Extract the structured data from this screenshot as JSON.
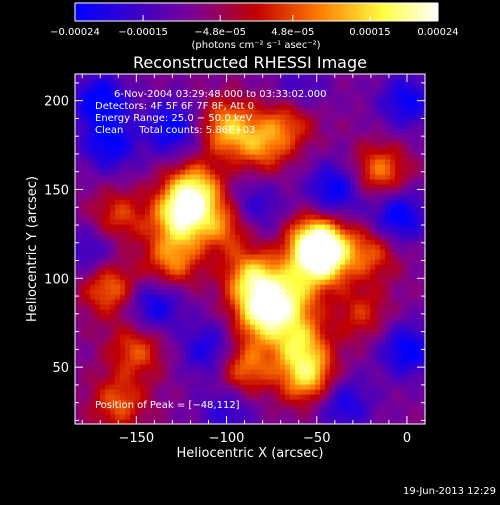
{
  "chart_data": {
    "type": "heatmap",
    "title": "Reconstructed RHESSI Image",
    "xlabel": "Heliocentric X (arcsec)",
    "ylabel": "Heliocentric Y (arcsec)",
    "xlim": [
      -184,
      10
    ],
    "ylim": [
      18,
      215
    ],
    "x_ticks": [
      -150,
      -100,
      -50,
      0
    ],
    "x_tick_labels": [
      "−150",
      "−100",
      "−50",
      "0"
    ],
    "y_ticks": [
      50,
      100,
      150,
      200
    ],
    "y_tick_labels": [
      "50",
      "100",
      "150",
      "200"
    ],
    "colorbar": {
      "range": [
        -0.00024,
        0.00024
      ],
      "tick_labels": [
        "−0.00024",
        "−0.00015",
        "−4.8e−05",
        "4.8e−05",
        "0.00015",
        "0.00024"
      ],
      "ticks": [
        -0.00024,
        -0.00015,
        -4.8e-05,
        4.8e-05,
        0.00015,
        0.00024
      ],
      "unit_label": "(photons cm⁻² s⁻¹ asec⁻²)",
      "colormap": [
        "#0000ff",
        "#3c00c8",
        "#7d0092",
        "#c20000",
        "#ff7a00",
        "#ffff40",
        "#ffffff"
      ]
    },
    "annotations": {
      "time_range": "6‑Nov‑2004 03:29:48.000 to 03:33:02.000",
      "detectors": "Detectors: 4F 5F 6F 7F 8F, Att 0",
      "energy": "Energy Range: 25.0 − 50.0 keV",
      "method": "Clean     Total counts: 5.86E+03",
      "peak": "Position of Peak = [−48,112]"
    },
    "peak_position": [
      -48,
      112
    ],
    "blobs": [
      {
        "x": -48,
        "y": 112,
        "v": 1.0
      },
      {
        "x": -50,
        "y": 122,
        "v": 0.7
      },
      {
        "x": -125,
        "y": 135,
        "v": 0.85
      },
      {
        "x": -118,
        "y": 150,
        "v": 0.75
      },
      {
        "x": -130,
        "y": 110,
        "v": 0.55
      },
      {
        "x": -100,
        "y": 185,
        "v": 0.65
      },
      {
        "x": -80,
        "y": 175,
        "v": 0.5
      },
      {
        "x": -65,
        "y": 190,
        "v": 0.45
      },
      {
        "x": -85,
        "y": 100,
        "v": 0.75
      },
      {
        "x": -80,
        "y": 80,
        "v": 0.8
      },
      {
        "x": -65,
        "y": 90,
        "v": 0.6
      },
      {
        "x": -60,
        "y": 65,
        "v": 0.6
      },
      {
        "x": -55,
        "y": 45,
        "v": 0.75
      },
      {
        "x": -90,
        "y": 50,
        "v": 0.55
      },
      {
        "x": -100,
        "y": 130,
        "v": 0.5
      },
      {
        "x": -150,
        "y": 60,
        "v": 0.45
      },
      {
        "x": -165,
        "y": 95,
        "v": 0.55
      },
      {
        "x": -160,
        "y": 135,
        "v": 0.4
      },
      {
        "x": -20,
        "y": 115,
        "v": 0.45
      },
      {
        "x": -15,
        "y": 160,
        "v": 0.55
      },
      {
        "x": -25,
        "y": 80,
        "v": 0.35
      },
      {
        "x": -160,
        "y": 30,
        "v": 0.45
      },
      {
        "x": -130,
        "y": 185,
        "v": -0.55
      },
      {
        "x": -170,
        "y": 200,
        "v": -0.6
      },
      {
        "x": -165,
        "y": 175,
        "v": -0.5
      },
      {
        "x": -40,
        "y": 150,
        "v": -0.55
      },
      {
        "x": -5,
        "y": 135,
        "v": -0.6
      },
      {
        "x": 0,
        "y": 200,
        "v": -0.5
      },
      {
        "x": 0,
        "y": 60,
        "v": -0.55
      },
      {
        "x": -110,
        "y": 60,
        "v": -0.45
      },
      {
        "x": -140,
        "y": 85,
        "v": -0.5
      },
      {
        "x": -85,
        "y": 140,
        "v": -0.4
      },
      {
        "x": -35,
        "y": 30,
        "v": -0.45
      },
      {
        "x": -175,
        "y": 115,
        "v": -0.35
      },
      {
        "x": -100,
        "y": 25,
        "v": -0.35
      },
      {
        "x": -60,
        "y": 205,
        "v": -0.35
      }
    ]
  },
  "footer": {
    "date": "19‑Jun‑2013 12:29"
  }
}
